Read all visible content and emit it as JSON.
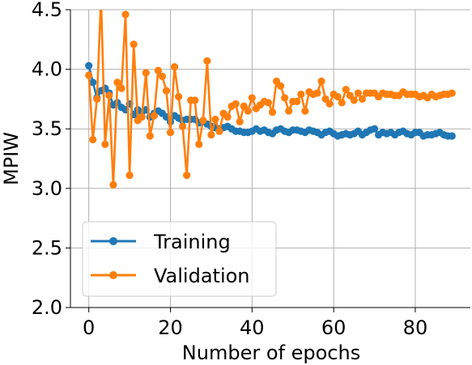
{
  "chart_data": {
    "type": "line",
    "xlabel": "Number of epochs",
    "ylabel": "MPIW",
    "xlim": [
      -4.5,
      93.5
    ],
    "ylim": [
      2.0,
      4.5
    ],
    "xticks": [
      0,
      20,
      40,
      60,
      80
    ],
    "yticks": [
      2.0,
      2.5,
      3.0,
      3.5,
      4.0,
      4.5
    ],
    "xtick_labels": [
      "0",
      "20",
      "40",
      "60",
      "80"
    ],
    "ytick_labels": [
      "2.0",
      "2.5",
      "3.0",
      "3.5",
      "4.0",
      "4.5"
    ],
    "grid": true,
    "legend_position": "lower-left",
    "series": [
      {
        "name": "Training",
        "color": "#1f77b4",
        "values": [
          4.03,
          3.89,
          3.76,
          3.82,
          3.84,
          3.8,
          3.7,
          3.72,
          3.68,
          3.66,
          3.71,
          3.62,
          3.66,
          3.64,
          3.66,
          3.6,
          3.63,
          3.65,
          3.63,
          3.6,
          3.56,
          3.61,
          3.59,
          3.57,
          3.58,
          3.58,
          3.58,
          3.55,
          3.56,
          3.54,
          3.52,
          3.51,
          3.5,
          3.51,
          3.52,
          3.5,
          3.48,
          3.48,
          3.47,
          3.47,
          3.48,
          3.5,
          3.48,
          3.49,
          3.47,
          3.46,
          3.49,
          3.5,
          3.48,
          3.47,
          3.49,
          3.49,
          3.48,
          3.47,
          3.49,
          3.48,
          3.47,
          3.45,
          3.47,
          3.48,
          3.46,
          3.44,
          3.45,
          3.46,
          3.45,
          3.46,
          3.48,
          3.45,
          3.47,
          3.49,
          3.5,
          3.45,
          3.47,
          3.46,
          3.47,
          3.45,
          3.47,
          3.48,
          3.46,
          3.45,
          3.47,
          3.47,
          3.44,
          3.45,
          3.45,
          3.46,
          3.47,
          3.45,
          3.44,
          3.44
        ]
      },
      {
        "name": "Validation",
        "color": "#ff7f0e",
        "values": [
          3.95,
          3.41,
          3.75,
          4.6,
          3.37,
          3.78,
          3.03,
          3.89,
          3.84,
          4.46,
          3.11,
          4.21,
          3.57,
          3.6,
          3.97,
          3.44,
          3.61,
          3.99,
          3.94,
          3.82,
          3.47,
          4.02,
          3.77,
          3.52,
          3.11,
          3.74,
          3.74,
          3.37,
          3.57,
          4.07,
          3.45,
          3.58,
          3.48,
          3.63,
          3.6,
          3.69,
          3.71,
          3.56,
          3.69,
          3.65,
          3.76,
          3.67,
          3.7,
          3.73,
          3.72,
          3.64,
          3.9,
          3.86,
          3.76,
          3.65,
          3.73,
          3.73,
          3.79,
          3.65,
          3.81,
          3.79,
          3.8,
          3.9,
          3.75,
          3.71,
          3.79,
          3.77,
          3.72,
          3.83,
          3.78,
          3.74,
          3.8,
          3.75,
          3.8,
          3.8,
          3.8,
          3.77,
          3.8,
          3.79,
          3.79,
          3.78,
          3.78,
          3.81,
          3.79,
          3.79,
          3.79,
          3.77,
          3.78,
          3.76,
          3.79,
          3.77,
          3.78,
          3.79,
          3.79,
          3.8
        ]
      }
    ]
  }
}
